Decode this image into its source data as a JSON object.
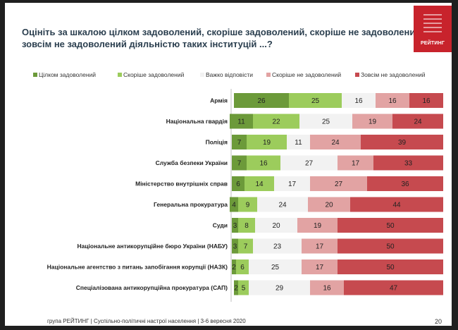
{
  "title_lines": [
    "Оцініть за шкалою цілком задоволений, скоріше задоволений, скоріше не задоволений,",
    "зовсім не задоволений діяльністю таких інституцій ...?"
  ],
  "logo_text": "РЕЙТИНГ",
  "footer": "група РЕЙТИНГ |  Суспільно-політичні настрої населення  | 3-6 вересня  2020",
  "page_number": "20",
  "colors": {
    "fully_satisfied": "#6c9a3a",
    "rather_satisfied": "#9ccc5c",
    "hard_to_say": "#f2f2f2",
    "rather_dissatisfied": "#e2a3a3",
    "not_satisfied": "#c64a4f"
  },
  "chart_data": {
    "type": "bar",
    "orientation": "horizontal",
    "stacked": true,
    "xlim": [
      0,
      100
    ],
    "categories": [
      "Армія",
      "Національна гвардія",
      "Поліція",
      "Служба безпеки України",
      "Міністерство внутрішніх справ",
      "Генеральна прокуратура",
      "Суди",
      "Національне антикорупційне бюро України (НАБУ)",
      "Національне агентство з питань запобігання корупції (НАЗК)",
      "Спеціалізована антикорупційна прокуратура (САП)"
    ],
    "series": [
      {
        "name": "Цілком задоволений",
        "values": [
          26,
          11,
          7,
          7,
          6,
          4,
          3,
          3,
          2,
          2
        ]
      },
      {
        "name": "Скоріше задоволений",
        "values": [
          25,
          22,
          19,
          16,
          14,
          9,
          8,
          7,
          6,
          5
        ]
      },
      {
        "name": "Важко відповісти",
        "values": [
          16,
          25,
          11,
          27,
          17,
          24,
          20,
          23,
          25,
          29
        ]
      },
      {
        "name": "Скоріше не задоволений",
        "values": [
          16,
          19,
          24,
          17,
          27,
          20,
          19,
          17,
          17,
          16
        ]
      },
      {
        "name": "Зовсім не задоволений",
        "values": [
          16,
          24,
          39,
          33,
          36,
          44,
          50,
          50,
          50,
          47
        ]
      }
    ],
    "legend_position": "top",
    "grid": false
  }
}
